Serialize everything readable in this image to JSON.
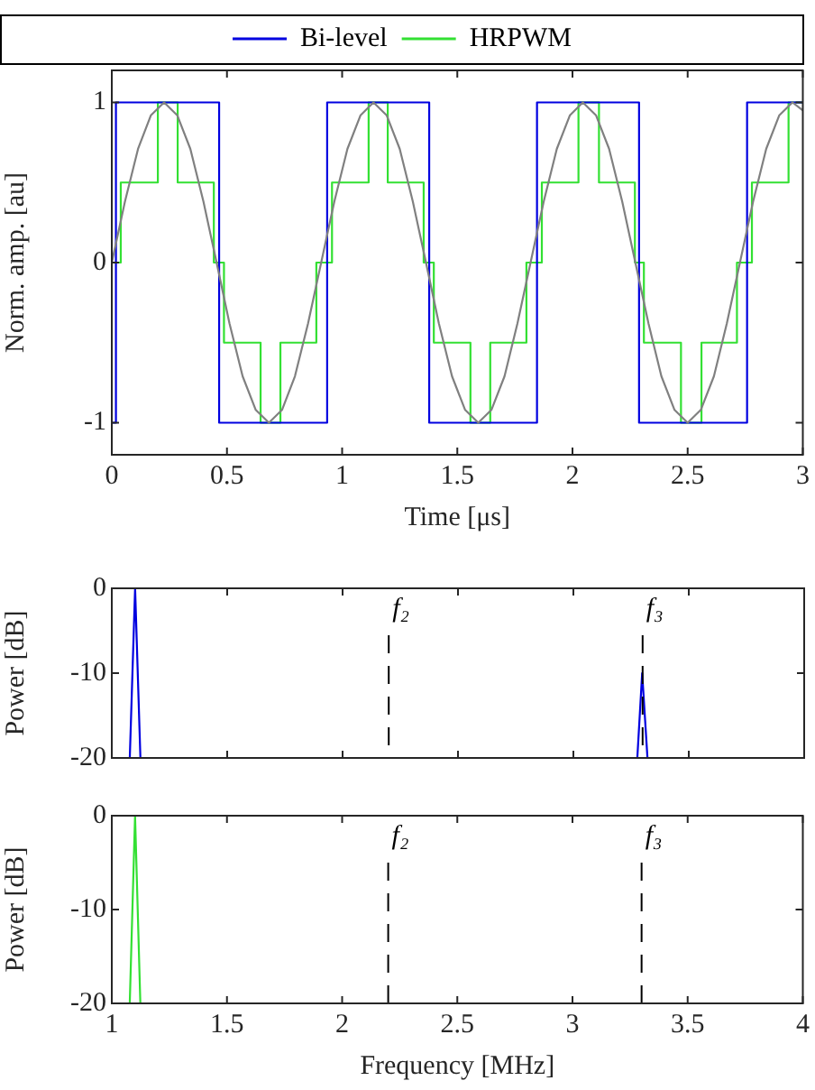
{
  "chart_data": [
    {
      "type": "line",
      "xlabel": "Time [μs]",
      "ylabel": "Norm. amp. [au]",
      "xlim": [
        0,
        3
      ],
      "xticks": [
        0,
        0.5,
        1,
        1.5,
        2,
        2.5,
        3
      ],
      "ylim": [
        -1.2,
        1.2
      ],
      "yticks": [
        -1,
        0,
        1
      ],
      "grid": false,
      "legend": "top",
      "marker": "none",
      "series": [
        {
          "type": "line",
          "color": "#808080",
          "x": [
            0,
            0.057,
            0.114,
            0.17,
            0.227,
            0.284,
            0.341,
            0.398,
            0.455,
            0.511,
            0.568,
            0.625,
            0.682,
            0.739,
            0.795,
            0.852,
            0.909,
            0.966,
            1.023,
            1.08,
            1.136,
            1.193,
            1.25,
            1.307,
            1.364,
            1.42,
            1.477,
            1.534,
            1.591,
            1.648,
            1.705,
            1.761,
            1.818,
            1.875,
            1.932,
            1.989,
            2.045,
            2.102,
            2.159,
            2.216,
            2.273,
            2.33,
            2.386,
            2.443,
            2.5,
            2.557,
            2.614,
            2.67,
            2.727,
            2.784,
            2.841,
            2.898,
            2.955,
            3.0
          ],
          "values": [
            0,
            0.38,
            0.71,
            0.92,
            1,
            0.92,
            0.71,
            0.38,
            0,
            -0.38,
            -0.71,
            -0.92,
            -1,
            -0.92,
            -0.71,
            -0.38,
            0,
            0.38,
            0.71,
            0.92,
            1,
            0.92,
            0.71,
            0.38,
            0,
            -0.38,
            -0.71,
            -0.92,
            -1,
            -0.92,
            -0.71,
            -0.38,
            0,
            0.38,
            0.71,
            0.92,
            1,
            0.92,
            0.71,
            0.38,
            0,
            -0.38,
            -0.71,
            -0.92,
            -1,
            -0.92,
            -0.71,
            -0.38,
            0,
            0.38,
            0.71,
            0.92,
            1,
            0.95
          ]
        },
        {
          "type": "step",
          "name": "Bi-level",
          "color": "#0000e0",
          "x": [
            0,
            0.018,
            0.466,
            0.935,
            1.378,
            1.846,
            2.289,
            2.758,
            3
          ],
          "values": [
            -1,
            1,
            -1,
            1,
            -1,
            1,
            -1,
            1,
            1
          ]
        },
        {
          "type": "step",
          "name": "HRPWM",
          "color": "#33e033",
          "x": [
            0,
            0.039,
            0.2,
            0.286,
            0.443,
            0.487,
            0.646,
            0.732,
            0.888,
            0.956,
            1.115,
            1.198,
            1.354,
            1.398,
            1.557,
            1.643,
            1.8,
            1.867,
            2.026,
            2.115,
            2.271,
            2.31,
            2.471,
            2.56,
            2.714,
            2.779,
            2.938,
            3
          ],
          "values": [
            0,
            0.5,
            1,
            0.5,
            0,
            -0.5,
            -1,
            -0.5,
            0,
            0.5,
            1,
            0.5,
            0,
            -0.5,
            -1,
            -0.5,
            0,
            0.5,
            1,
            0.5,
            0,
            -0.5,
            -1,
            -0.5,
            0,
            0.5,
            1,
            1
          ]
        }
      ]
    },
    {
      "type": "line",
      "ylabel": "Power [dB]",
      "xlim": [
        1,
        4
      ],
      "xticks": [
        1,
        1.5,
        2,
        2.5,
        3,
        3.5,
        4
      ],
      "ylim": [
        -20,
        0
      ],
      "yticks": [
        -20,
        -10,
        0
      ],
      "grid": false,
      "tick_labels": "y",
      "marker": "none",
      "ref_lines": [
        {
          "axis": "x",
          "value": 2.2,
          "label": "f₂",
          "color": "#000000",
          "line_style": "dashed"
        },
        {
          "axis": "x",
          "value": 3.3,
          "label": "f₃",
          "color": "#000000",
          "line_style": "dashed"
        }
      ],
      "series": [
        {
          "type": "line",
          "color": "#0000e0",
          "x": [
            1.078,
            1.101,
            1.124,
            2.2,
            3.277,
            3.298,
            3.321
          ],
          "values": [
            -20,
            0,
            -20,
            null,
            -20,
            -10,
            -20
          ]
        }
      ]
    },
    {
      "type": "line",
      "xlabel": "Frequency [MHz]",
      "ylabel": "Power [dB]",
      "xlim": [
        1,
        4
      ],
      "xticks": [
        1,
        1.5,
        2,
        2.5,
        3,
        3.5,
        4
      ],
      "ylim": [
        -20,
        0
      ],
      "yticks": [
        -20,
        -10,
        0
      ],
      "grid": false,
      "marker": "none",
      "ref_lines": [
        {
          "axis": "x",
          "value": 2.2,
          "label": "f₂",
          "color": "#000000",
          "line_style": "dashed"
        },
        {
          "axis": "x",
          "value": 3.3,
          "label": "f₃",
          "color": "#000000",
          "line_style": "dashed"
        }
      ],
      "series": [
        {
          "type": "line",
          "color": "#33e033",
          "x": [
            1.078,
            1.101,
            1.124
          ],
          "values": [
            -20,
            0,
            -20
          ]
        }
      ]
    }
  ]
}
